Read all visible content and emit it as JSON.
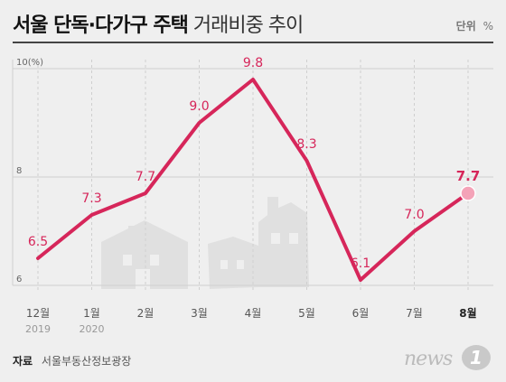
{
  "header": {
    "title_bold": "서울 단독·다가구 주택",
    "title_light": "거래비중 추이",
    "unit_label": "단위",
    "unit": "%"
  },
  "source": {
    "label": "자료",
    "text": "서울부동산정보광장"
  },
  "logo": {
    "text": "news",
    "mark": "1"
  },
  "colors": {
    "line": "#d6265a",
    "label": "#d6265a",
    "highlight_point": "#f4a3b8",
    "grid": "#cfcfcf",
    "house": "#e0e0e0",
    "background": "#efefef"
  },
  "chart_data": {
    "type": "line",
    "categories": [
      "12월",
      "1월",
      "2월",
      "3월",
      "4월",
      "5월",
      "6월",
      "7월",
      "8월"
    ],
    "year_labels": [
      "2019",
      "2020",
      "",
      "",
      "",
      "",
      "",
      "",
      ""
    ],
    "values": [
      6.5,
      7.3,
      7.7,
      9.0,
      9.8,
      8.3,
      6.1,
      7.0,
      7.7
    ],
    "value_labels": [
      "6.5",
      "7.3",
      "7.7",
      "9.0",
      "9.8",
      "8.3",
      "6.1",
      "7.0",
      "7.7"
    ],
    "ylim": [
      6,
      10
    ],
    "yticks": [
      6,
      8,
      10
    ],
    "ytick_labels": [
      "6",
      "8",
      "10(%)"
    ],
    "grid": true,
    "highlight_last": true
  }
}
